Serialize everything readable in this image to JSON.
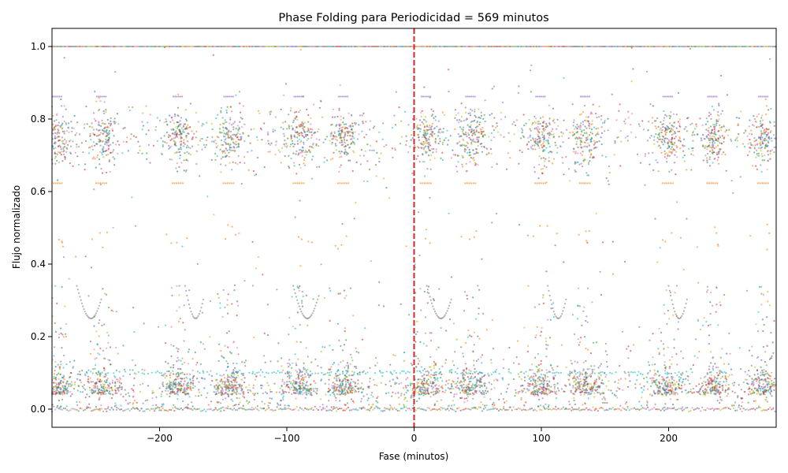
{
  "chart_data": {
    "type": "scatter",
    "title": "Phase Folding para Periodicidad = 569 minutos",
    "xlabel": "Fase (minutos)",
    "ylabel": "Flujo normalizado",
    "xlim": [
      -284.5,
      284.5
    ],
    "ylim": [
      -0.05,
      1.05
    ],
    "x_ticks": [
      -200,
      -100,
      0,
      100,
      200
    ],
    "x_tick_labels": [
      "−200",
      "−100",
      "0",
      "100",
      "200"
    ],
    "y_ticks": [
      0.0,
      0.2,
      0.4,
      0.6,
      0.8,
      1.0
    ],
    "y_tick_labels": [
      "0.0",
      "0.2",
      "0.4",
      "0.6",
      "0.8",
      "1.0"
    ],
    "grid": false,
    "legend": "none",
    "reference_line": {
      "x": 0,
      "color": "#d62728",
      "style": "dashed"
    },
    "series_colors": [
      "#1f77b4",
      "#ff7f0e",
      "#2ca02c",
      "#d62728",
      "#9467bd",
      "#8c564b",
      "#e377c2",
      "#7f7f7f",
      "#bcbd22",
      "#17becf"
    ],
    "cluster_centers_x": [
      -280,
      -245,
      -185,
      -145,
      -90,
      -55,
      10,
      45,
      100,
      135,
      200,
      235,
      275
    ],
    "upper_band": {
      "center": 0.75,
      "spread": 0.06
    },
    "lower_band": {
      "center": 0.05,
      "spread": 0.05
    },
    "plateaus_y": [
      1.0,
      0.862,
      0.623,
      0.0
    ]
  }
}
